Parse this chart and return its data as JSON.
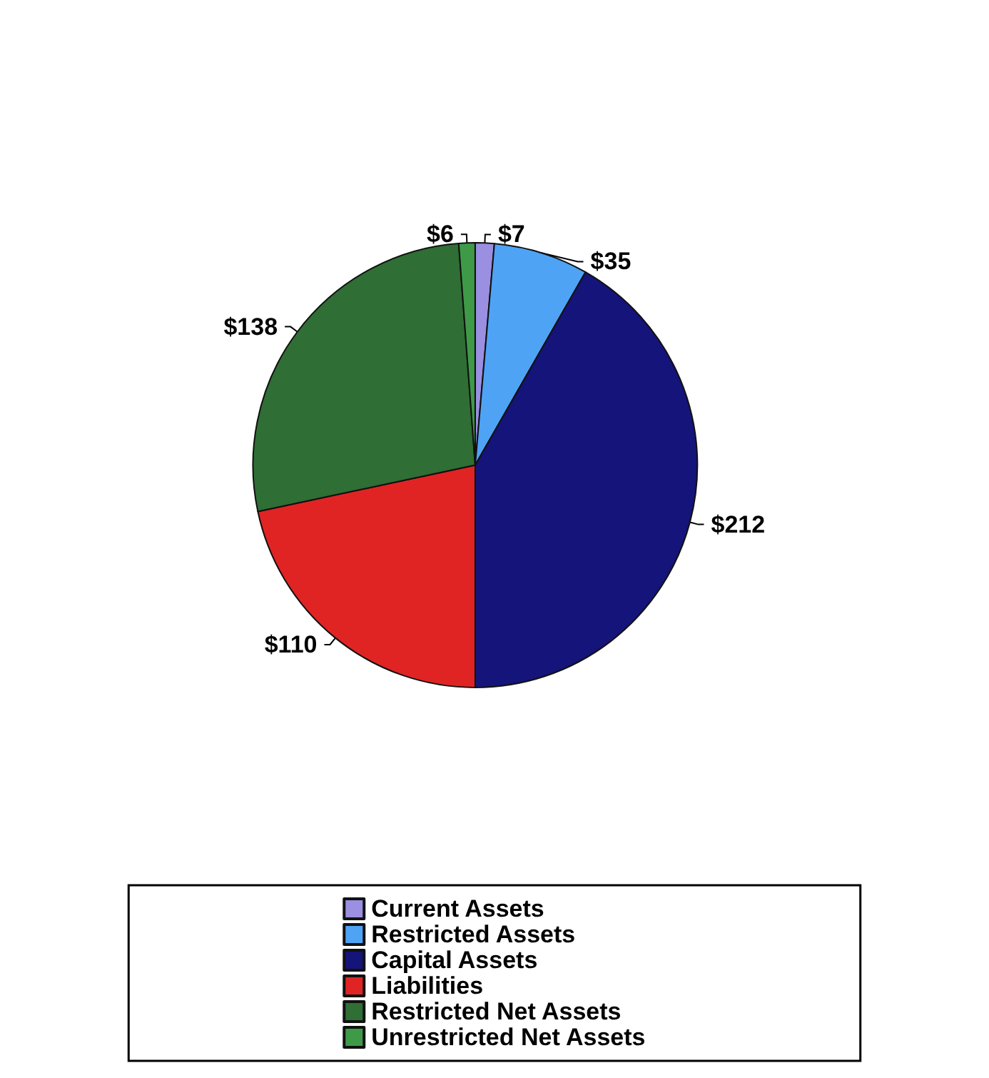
{
  "chart_data": {
    "type": "pie",
    "categories": [
      "Current Assets",
      "Restricted Assets",
      "Capital Assets",
      "Liabilities",
      "Restricted Net Assets",
      "Unrestricted Net Assets"
    ],
    "values": [
      7,
      35,
      212,
      110,
      138,
      6
    ],
    "value_labels": [
      "$7",
      "$35",
      "$212",
      "$110",
      "$138",
      "$6"
    ],
    "colors": [
      "#9a8fe0",
      "#4fa3f5",
      "#14147a",
      "#e02424",
      "#2f6e34",
      "#3f9a48"
    ],
    "legend": "bottom"
  }
}
